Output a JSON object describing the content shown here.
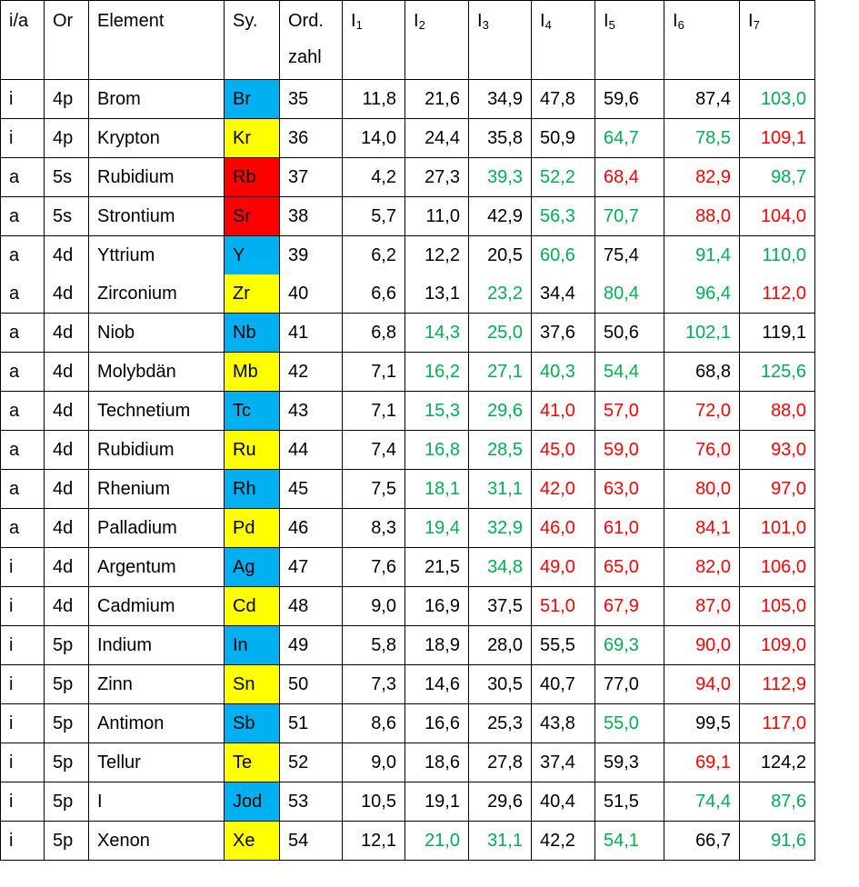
{
  "colors": {
    "green": "#00b050",
    "red": "#ff0000",
    "blue": "#00b0f0",
    "yellow": "#ffff00"
  },
  "headers": {
    "ia": "i/a",
    "or": "Or",
    "element": "Element",
    "sym": "Sy.",
    "ord_line1": "Ord.",
    "ord_line2": "zahl",
    "ions": [
      {
        "main": "I",
        "sub": "1"
      },
      {
        "main": "I",
        "sub": "2"
      },
      {
        "main": "I",
        "sub": "3"
      },
      {
        "main": "I",
        "sub": "4"
      },
      {
        "main": "I",
        "sub": "5"
      },
      {
        "main": "I",
        "sub": "6"
      },
      {
        "main": "I",
        "sub": "7"
      }
    ]
  },
  "rows": [
    {
      "ia": "i",
      "or": "4p",
      "element": "Brom",
      "sym": "Br",
      "sym_color": "blue",
      "z": "35",
      "vals": [
        "11,8",
        "21,6",
        "34,9",
        "47,8",
        "59,6",
        "87,4",
        "103,0"
      ],
      "val_colors": "kkkkkkg"
    },
    {
      "ia": "i",
      "or": "4p",
      "element": "Krypton",
      "sym": "Kr",
      "sym_color": "yellow",
      "z": "36",
      "vals": [
        "14,0",
        "24,4",
        "35,8",
        "50,9",
        "64,7",
        "78,5",
        "109,1"
      ],
      "val_colors": "kkkkggr"
    },
    {
      "ia": "a",
      "or": "5s",
      "element": "Rubidium",
      "sym": "Rb",
      "sym_color": "red",
      "z": "37",
      "vals": [
        "4,2",
        "27,3",
        "39,3",
        "52,2",
        "68,4",
        "82,9",
        "98,7"
      ],
      "val_colors": "kkggrrg"
    },
    {
      "ia": "a",
      "or": "5s",
      "element": "Strontium",
      "sym": "Sr",
      "sym_color": "red",
      "z": "38",
      "vals": [
        "5,7",
        "11,0",
        "42,9",
        "56,3",
        "70,7",
        "88,0",
        "104,0"
      ],
      "val_colors": "kkkggrr"
    },
    {
      "ia": "a",
      "or": "4d",
      "element": "Yttrium",
      "sym": "Y",
      "sym_color": "blue",
      "z": "39",
      "vals": [
        "6,2",
        "12,2",
        "20,5",
        "60,6",
        "75,4",
        "91,4",
        "110,0"
      ],
      "val_colors": "kkkgkgg",
      "merged": "top"
    },
    {
      "ia": "a",
      "or": "4d",
      "element": "Zirconium",
      "sym": "Zr",
      "sym_color": "yellow",
      "z": "40",
      "vals": [
        "6,6",
        "13,1",
        "23,2",
        "34,4",
        "80,4",
        "96,4",
        "112,0"
      ],
      "val_colors": "kkgkggr",
      "merged": "bottom"
    },
    {
      "ia": "a",
      "or": "4d",
      "element": "Niob",
      "sym": "Nb",
      "sym_color": "blue",
      "z": "41",
      "vals": [
        "6,8",
        "14,3",
        "25,0",
        "37,6",
        "50,6",
        "102,1",
        "119,1"
      ],
      "val_colors": "kggkkgk"
    },
    {
      "ia": "a",
      "or": "4d",
      "element": "Molybdän",
      "sym": "Mb",
      "sym_color": "yellow",
      "z": "42",
      "vals": [
        "7,1",
        "16,2",
        "27,1",
        "40,3",
        "54,4",
        "68,8",
        "125,6"
      ],
      "val_colors": "kggggkg"
    },
    {
      "ia": "a",
      "or": "4d",
      "element": "Technetium",
      "sym": "Tc",
      "sym_color": "blue",
      "z": "43",
      "vals": [
        "7,1",
        "15,3",
        "29,6",
        "41,0",
        "57,0",
        "72,0",
        "88,0"
      ],
      "val_colors": "kggrrrr"
    },
    {
      "ia": "a",
      "or": "4d",
      "element": "Rubidium",
      "sym": "Ru",
      "sym_color": "yellow",
      "z": "44",
      "vals": [
        "7,4",
        "16,8",
        "28,5",
        "45,0",
        "59,0",
        "76,0",
        "93,0"
      ],
      "val_colors": "kggrrrr"
    },
    {
      "ia": "a",
      "or": "4d",
      "element": "Rhenium",
      "sym": "Rh",
      "sym_color": "blue",
      "z": "45",
      "vals": [
        "7,5",
        "18,1",
        "31,1",
        "42,0",
        "63,0",
        "80,0",
        "97,0"
      ],
      "val_colors": "kggrrrr"
    },
    {
      "ia": "a",
      "or": "4d",
      "element": "Palladium",
      "sym": "Pd",
      "sym_color": "yellow",
      "z": "46",
      "vals": [
        "8,3",
        "19,4",
        "32,9",
        "46,0",
        "61,0",
        "84,1",
        "101,0"
      ],
      "val_colors": "kggrrrr"
    },
    {
      "ia": "i",
      "or": "4d",
      "element": "Argentum",
      "sym": "Ag",
      "sym_color": "blue",
      "z": "47",
      "vals": [
        "7,6",
        "21,5",
        "34,8",
        "49,0",
        "65,0",
        "82,0",
        "106,0"
      ],
      "val_colors": "kkgrrrr"
    },
    {
      "ia": "i",
      "or": "4d",
      "element": "Cadmium",
      "sym": "Cd",
      "sym_color": "yellow",
      "z": "48",
      "vals": [
        "9,0",
        "16,9",
        "37,5",
        "51,0",
        "67,9",
        "87,0",
        "105,0"
      ],
      "val_colors": "kkkrrrr"
    },
    {
      "ia": "i",
      "or": "5p",
      "element": "Indium",
      "sym": "In",
      "sym_color": "blue",
      "z": "49",
      "vals": [
        "5,8",
        "18,9",
        "28,0",
        "55,5",
        "69,3",
        "90,0",
        "109,0"
      ],
      "val_colors": "kkkkgrr"
    },
    {
      "ia": "i",
      "or": "5p",
      "element": "Zinn",
      "sym": "Sn",
      "sym_color": "yellow",
      "z": "50",
      "vals": [
        "7,3",
        "14,6",
        "30,5",
        "40,7",
        "77,0",
        "94,0",
        "112,9"
      ],
      "val_colors": "kkkkkrr"
    },
    {
      "ia": "i",
      "or": "5p",
      "element": "Antimon",
      "sym": "Sb",
      "sym_color": "blue",
      "z": "51",
      "vals": [
        "8,6",
        "16,6",
        "25,3",
        "43,8",
        "55,0",
        "99,5",
        "117,0"
      ],
      "val_colors": "kkkkgkr"
    },
    {
      "ia": "i",
      "or": "5p",
      "element": "Tellur",
      "sym": "Te",
      "sym_color": "yellow",
      "z": "52",
      "vals": [
        "9,0",
        "18,6",
        "27,8",
        "37,4",
        "59,3",
        "69,1",
        "124,2"
      ],
      "val_colors": "kkkkkrk"
    },
    {
      "ia": "i",
      "or": "5p",
      "element": "I",
      "sym": "Jod",
      "sym_color": "blue",
      "z": "53",
      "vals": [
        "10,5",
        "19,1",
        "29,6",
        "40,4",
        "51,5",
        "74,4",
        "87,6"
      ],
      "val_colors": "kkkkkgg"
    },
    {
      "ia": "i",
      "or": "5p",
      "element": "Xenon",
      "sym": "Xe",
      "sym_color": "yellow",
      "z": "54",
      "vals": [
        "12,1",
        "21,0",
        "31,1",
        "42,2",
        "54,1",
        "66,7",
        "91,6"
      ],
      "val_colors": "kggkgkg"
    }
  ]
}
